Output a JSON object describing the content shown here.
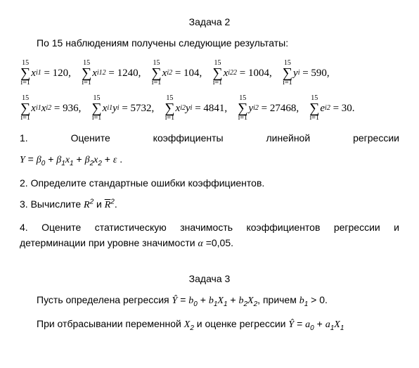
{
  "task2": {
    "title": "Задача 2",
    "intro": "По 15 наблюдениям получены следующие результаты:",
    "n": "15",
    "idx": "i=1",
    "sums_row1": [
      {
        "expr": "x",
        "sub": "i1",
        "sq": "",
        "eq": "= 120,"
      },
      {
        "expr": "x",
        "sub": "i1",
        "sq": "2",
        "eq": "= 1240,"
      },
      {
        "expr": "x",
        "sub": "i2",
        "sq": "",
        "eq": "= 104,"
      },
      {
        "expr": "x",
        "sub": "i2",
        "sq": "2",
        "eq": "= 1004,"
      },
      {
        "expr": "y",
        "sub": "i",
        "sq": "",
        "eq": "= 590,"
      }
    ],
    "sums_row2": [
      {
        "lhs": "x_{i1}x_{i2}",
        "eq": "= 936,"
      },
      {
        "lhs": "x_{i1}y_i",
        "eq": "= 5732,"
      },
      {
        "lhs": "x_{i2}y_i",
        "eq": "= 4841,"
      },
      {
        "lhs": "y_i^2",
        "eq": "= 27468,"
      },
      {
        "lhs": "e_i^2",
        "eq": "= 30."
      }
    ],
    "q1": {
      "num": "1.",
      "w1": "Оцените",
      "w2": "коэффициенты",
      "w3": "линейной",
      "w4": "регрессии"
    },
    "model_prefix": "Y = ",
    "model_b0": "β",
    "model_b0s": "0",
    "model_b1": "β",
    "model_b1s": "1",
    "model_x1": "x",
    "model_x1s": "1",
    "model_b2": "β",
    "model_b2s": "2",
    "model_x2": "x",
    "model_x2s": "2",
    "model_eps": "ε",
    "q2": "2. Определите стандартные ошибки коэффициентов.",
    "q3_pre": "3. Вычислите ",
    "q3_r2": "R",
    "q3_and": " и ",
    "q3_rbar": "R",
    "q3_dot": ".",
    "q4": "4. Оцените статистическую значимость коэффициентов регрессии и детерминации при уровне значимости ",
    "alpha": "α",
    "alpha_val": " =0,05."
  },
  "task3": {
    "title": "Задача 3",
    "line1_pre": "Пусть определена регрессия ",
    "line1_mid": ", причем ",
    "b1gt0": " > 0",
    "line2_pre": "При отбрасывании переменной ",
    "line2_mid": " и оценке регрессии "
  }
}
